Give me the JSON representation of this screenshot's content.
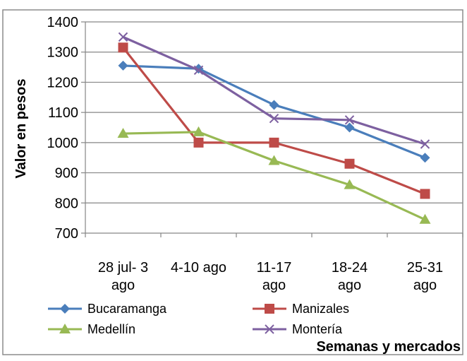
{
  "chart_data": {
    "type": "line",
    "title": "",
    "xlabel": "Semanas y mercados",
    "ylabel": "Valor en pesos",
    "ylim": [
      700,
      1400
    ],
    "yticks": [
      700,
      800,
      900,
      1000,
      1100,
      1200,
      1300,
      1400
    ],
    "categories": [
      [
        "28 jul- 3",
        "ago"
      ],
      [
        "4-10 ago"
      ],
      [
        "11-17",
        "ago"
      ],
      [
        "18-24",
        "ago"
      ],
      [
        "25-31",
        "ago"
      ]
    ],
    "grid": true,
    "legend_position": "bottom",
    "series": [
      {
        "name": "Bucaramanga",
        "color": "#4a7ebb",
        "marker": "diamond",
        "values": [
          1255,
          1245,
          1125,
          1050,
          950
        ]
      },
      {
        "name": "Manizales",
        "color": "#be4b48",
        "marker": "square",
        "values": [
          1315,
          1000,
          1000,
          930,
          830
        ]
      },
      {
        "name": "Medellín",
        "color": "#98b954",
        "marker": "triangle",
        "values": [
          1030,
          1035,
          940,
          860,
          745
        ]
      },
      {
        "name": "Montería",
        "color": "#7d60a0",
        "marker": "x",
        "values": [
          1350,
          1240,
          1080,
          1075,
          995
        ]
      }
    ]
  }
}
